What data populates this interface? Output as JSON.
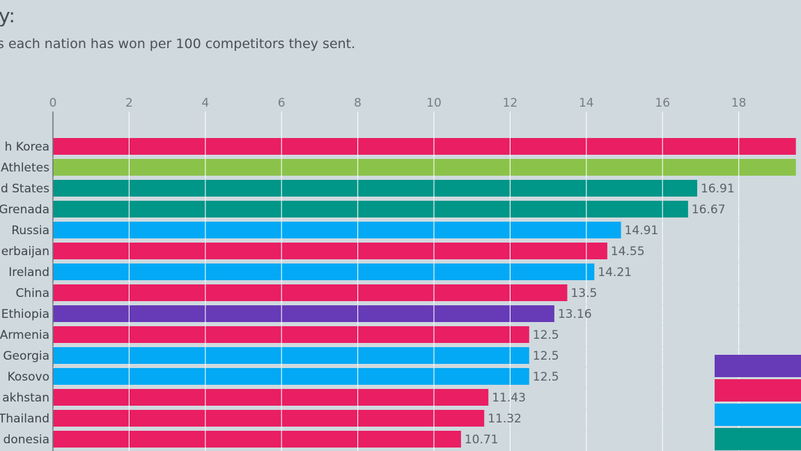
{
  "header": {
    "title": "y:",
    "subtitle": "s each nation has won per 100 competitors they sent."
  },
  "chart_data": {
    "type": "bar",
    "orientation": "horizontal",
    "xlim": [
      0,
      19.5
    ],
    "x_ticks": [
      0,
      2,
      4,
      6,
      8,
      10,
      12,
      14,
      16,
      18
    ],
    "grid": true,
    "categories": [
      "h Korea",
      "Athletes",
      "d States",
      "Grenada",
      "Russia",
      "erbaijan",
      "Ireland",
      "China",
      "Ethiopia",
      "Armenia",
      "Georgia",
      "Kosovo",
      "akhstan",
      "Thailand",
      "donesia"
    ],
    "values": [
      19.5,
      19.5,
      16.91,
      16.67,
      14.91,
      14.55,
      14.21,
      13.5,
      13.16,
      12.5,
      12.5,
      12.5,
      11.43,
      11.32,
      10.71
    ],
    "value_labels": [
      "",
      "",
      "16.91",
      "16.67",
      "14.91",
      "14.55",
      "14.21",
      "13.5",
      "13.16",
      "12.5",
      "12.5",
      "12.5",
      "11.43",
      "11.32",
      "10.71"
    ],
    "bar_colors": [
      "#e91e63",
      "#8bc34a",
      "#009688",
      "#009688",
      "#03a9f4",
      "#e91e63",
      "#03a9f4",
      "#e91e63",
      "#673ab7",
      "#e91e63",
      "#03a9f4",
      "#03a9f4",
      "#e91e63",
      "#e91e63",
      "#e91e63"
    ],
    "legend_swatches": [
      "#673ab7",
      "#e91e63",
      "#03a9f4",
      "#009688"
    ]
  }
}
